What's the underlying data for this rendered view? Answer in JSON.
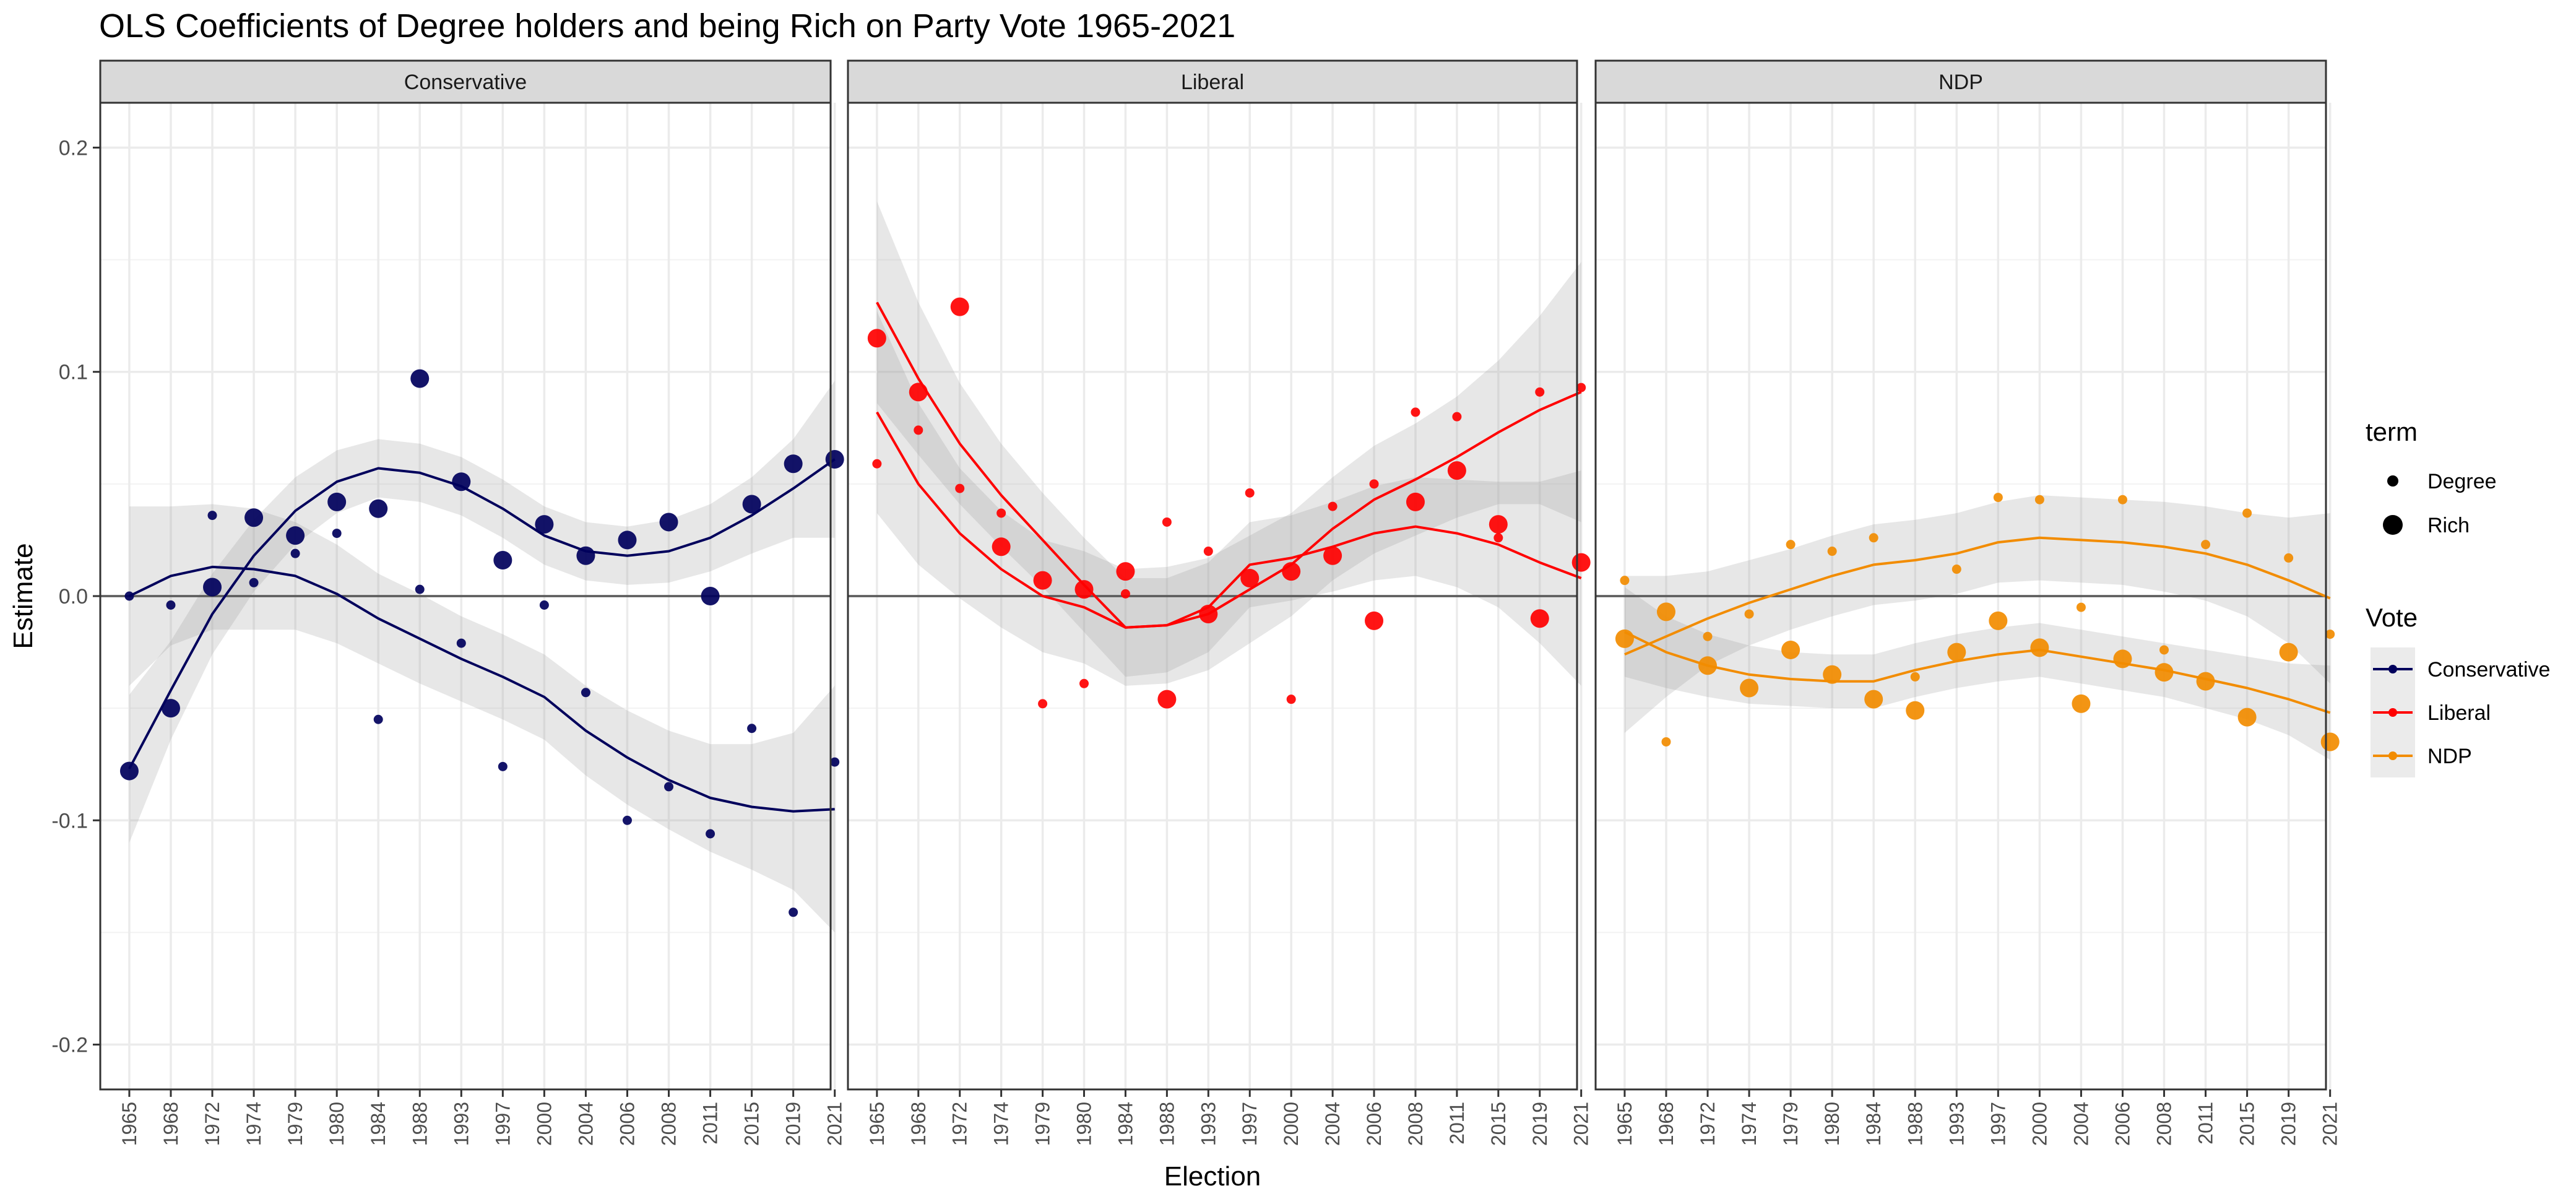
{
  "chart_data": {
    "type": "scatter",
    "title": "OLS Coefficients of Degree holders and being Rich on Party Vote 1965-2021",
    "xlabel": "Election",
    "ylabel": "Estimate",
    "ylim": [
      -0.22,
      0.22
    ],
    "y_ticks": [
      -0.2,
      -0.1,
      0.0,
      0.1,
      0.2
    ],
    "y_tick_labels": [
      "-0.2",
      "-0.1",
      "0.0",
      "0.1",
      "0.2"
    ],
    "grid": true,
    "hline": 0,
    "categories": [
      "1965",
      "1968",
      "1972",
      "1974",
      "1979",
      "1980",
      "1984",
      "1988",
      "1993",
      "1997",
      "2000",
      "2004",
      "2006",
      "2008",
      "2011",
      "2015",
      "2019",
      "2021"
    ],
    "colors": {
      "Conservative": "#00005c",
      "Liberal": "#ff0000",
      "NDP": "#f28c00"
    },
    "panels": [
      {
        "name": "Conservative",
        "color": "#00005c",
        "series": [
          {
            "term": "Degree",
            "values": [
              0.0,
              -0.004,
              0.036,
              0.006,
              0.019,
              0.028,
              -0.055,
              0.003,
              -0.021,
              -0.076,
              -0.004,
              -0.043,
              -0.1,
              -0.085,
              -0.106,
              -0.059,
              -0.141,
              -0.074
            ],
            "smooth": [
              0.0,
              0.009,
              0.013,
              0.012,
              0.009,
              0.001,
              -0.01,
              -0.019,
              -0.028,
              -0.036,
              -0.045,
              -0.06,
              -0.072,
              -0.082,
              -0.09,
              -0.094,
              -0.096,
              -0.095
            ],
            "band": [
              0.04,
              0.031,
              0.028,
              0.027,
              0.024,
              0.022,
              0.02,
              0.02,
              0.019,
              0.019,
              0.019,
              0.02,
              0.021,
              0.022,
              0.024,
              0.028,
              0.035,
              0.055
            ]
          },
          {
            "term": "Rich",
            "values": [
              -0.078,
              -0.05,
              0.004,
              0.035,
              0.027,
              0.042,
              0.039,
              0.097,
              0.051,
              0.016,
              0.032,
              0.018,
              0.025,
              0.033,
              0.0,
              0.041,
              0.059,
              0.061
            ],
            "smooth": [
              -0.077,
              -0.042,
              -0.008,
              0.018,
              0.038,
              0.051,
              0.057,
              0.055,
              0.049,
              0.039,
              0.027,
              0.02,
              0.018,
              0.02,
              0.026,
              0.036,
              0.048,
              0.061
            ],
            "band": [
              0.033,
              0.022,
              0.018,
              0.016,
              0.015,
              0.014,
              0.013,
              0.013,
              0.013,
              0.013,
              0.013,
              0.013,
              0.013,
              0.014,
              0.015,
              0.017,
              0.022,
              0.035
            ]
          }
        ]
      },
      {
        "name": "Liberal",
        "color": "#ff0000",
        "series": [
          {
            "term": "Degree",
            "values": [
              0.059,
              0.074,
              0.048,
              0.037,
              -0.048,
              -0.039,
              0.001,
              0.033,
              0.02,
              0.046,
              -0.046,
              0.04,
              0.05,
              0.082,
              0.08,
              0.026,
              0.091,
              0.093
            ],
            "smooth": [
              0.082,
              0.05,
              0.028,
              0.012,
              0.0,
              -0.005,
              -0.014,
              -0.013,
              -0.008,
              0.003,
              0.014,
              0.03,
              0.043,
              0.052,
              0.062,
              0.073,
              0.083,
              0.091
            ],
            "band": [
              0.045,
              0.036,
              0.029,
              0.026,
              0.025,
              0.025,
              0.026,
              0.026,
              0.025,
              0.024,
              0.023,
              0.023,
              0.024,
              0.025,
              0.027,
              0.032,
              0.042,
              0.058
            ]
          },
          {
            "term": "Rich",
            "values": [
              0.115,
              0.091,
              0.129,
              0.022,
              0.007,
              0.003,
              0.011,
              -0.046,
              -0.008,
              0.008,
              0.011,
              0.018,
              -0.011,
              0.042,
              0.056,
              0.032,
              -0.01,
              0.015
            ],
            "smooth": [
              0.131,
              0.097,
              0.068,
              0.045,
              0.025,
              0.005,
              -0.014,
              -0.013,
              -0.005,
              0.014,
              0.017,
              0.022,
              0.028,
              0.031,
              0.028,
              0.023,
              0.015,
              0.008
            ],
            "band": [
              0.045,
              0.034,
              0.027,
              0.023,
              0.021,
              0.021,
              0.022,
              0.021,
              0.02,
              0.019,
              0.019,
              0.02,
              0.021,
              0.022,
              0.024,
              0.028,
              0.036,
              0.048
            ]
          }
        ]
      },
      {
        "name": "NDP",
        "color": "#f28c00",
        "series": [
          {
            "term": "Degree",
            "values": [
              0.007,
              -0.065,
              -0.018,
              -0.008,
              0.023,
              0.02,
              0.026,
              -0.036,
              0.012,
              0.044,
              0.043,
              -0.005,
              0.043,
              -0.024,
              0.023,
              0.037,
              0.017,
              -0.017
            ],
            "smooth": [
              -0.026,
              -0.018,
              -0.01,
              -0.003,
              0.003,
              0.009,
              0.014,
              0.016,
              0.019,
              0.024,
              0.026,
              0.025,
              0.024,
              0.022,
              0.019,
              0.014,
              0.007,
              -0.001
            ],
            "band": [
              0.035,
              0.027,
              0.021,
              0.019,
              0.018,
              0.018,
              0.018,
              0.018,
              0.018,
              0.018,
              0.019,
              0.019,
              0.019,
              0.02,
              0.021,
              0.023,
              0.028,
              0.038
            ]
          },
          {
            "term": "Rich",
            "values": [
              -0.019,
              -0.007,
              -0.031,
              -0.041,
              -0.024,
              -0.035,
              -0.046,
              -0.051,
              -0.025,
              -0.011,
              -0.023,
              -0.048,
              -0.028,
              -0.034,
              -0.038,
              -0.054,
              -0.025,
              -0.065
            ],
            "smooth": [
              -0.016,
              -0.025,
              -0.031,
              -0.035,
              -0.037,
              -0.038,
              -0.038,
              -0.033,
              -0.029,
              -0.026,
              -0.024,
              -0.027,
              -0.03,
              -0.033,
              -0.037,
              -0.041,
              -0.046,
              -0.052
            ],
            "band": [
              0.02,
              0.016,
              0.014,
              0.013,
              0.012,
              0.012,
              0.012,
              0.012,
              0.012,
              0.012,
              0.012,
              0.012,
              0.012,
              0.012,
              0.013,
              0.014,
              0.016,
              0.021
            ]
          }
        ]
      }
    ],
    "legend": {
      "position": "right",
      "term_title": "term",
      "terms": [
        "Degree",
        "Rich"
      ],
      "vote_title": "Vote",
      "votes": [
        "Conservative",
        "Liberal",
        "NDP"
      ]
    }
  }
}
